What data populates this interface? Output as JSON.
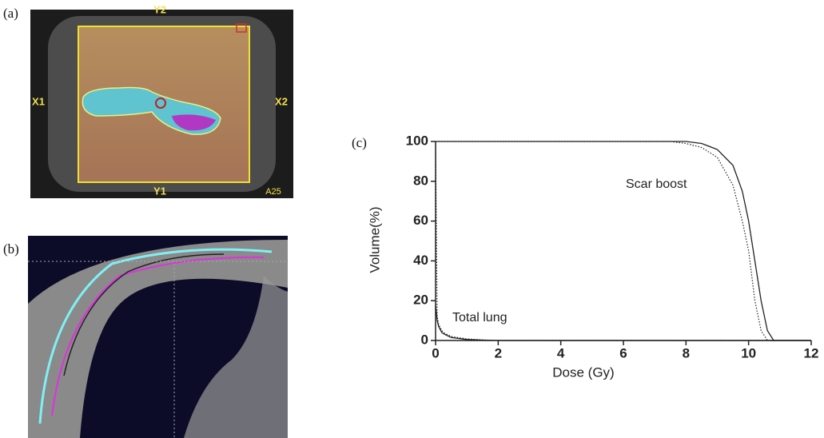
{
  "panels": {
    "a": "(a)",
    "b": "(b)",
    "c": "(c)"
  },
  "image_a": {
    "top": "Y2",
    "left": "X1",
    "right": "X2",
    "bottom": "Y1",
    "corner": "A25"
  },
  "chart_data": {
    "type": "line",
    "xlabel": "Dose (Gy)",
    "ylabel": "Volume(%)",
    "annotations": [
      "Scar boost",
      "Total lung"
    ],
    "x": [
      0,
      0.05,
      0.1,
      0.2,
      0.3,
      0.5,
      1,
      1.5,
      2,
      4,
      6,
      7,
      7.5,
      8,
      8.5,
      9,
      9.5,
      9.8,
      10,
      10.2,
      10.4,
      10.6,
      10.8,
      11,
      12
    ],
    "series": [
      {
        "color": "#222",
        "dash": "solid",
        "values": [
          100,
          100,
          100,
          100,
          100,
          100,
          100,
          100,
          100,
          100,
          100,
          100,
          100,
          100,
          99,
          96,
          88,
          75,
          60,
          40,
          20,
          5,
          0,
          0,
          0
        ]
      },
      {
        "color": "#222",
        "dash": "dotted",
        "values": [
          100,
          100,
          100,
          100,
          100,
          100,
          100,
          100,
          100,
          100,
          100,
          100,
          100,
          99,
          97,
          92,
          78,
          60,
          45,
          20,
          5,
          0,
          0,
          0,
          0
        ]
      },
      {
        "color": "#222",
        "dash": "solid",
        "values": [
          18,
          10,
          7,
          4,
          3,
          1.5,
          0.5,
          0.2,
          0,
          0,
          0,
          0,
          0,
          0,
          0,
          0,
          0,
          0,
          0,
          0,
          0,
          0,
          0,
          0,
          0
        ]
      },
      {
        "color": "#222",
        "dash": "dotted",
        "values": [
          100,
          12,
          8,
          5,
          3.5,
          2,
          0.8,
          0.3,
          0,
          0,
          0,
          0,
          0,
          0,
          0,
          0,
          0,
          0,
          0,
          0,
          0,
          0,
          0,
          0,
          0
        ]
      }
    ],
    "xlim": [
      0,
      12
    ],
    "ylim": [
      0,
      100
    ],
    "xticks": [
      0,
      2,
      4,
      6,
      8,
      10,
      12
    ],
    "yticks": [
      0,
      20,
      40,
      60,
      80,
      100
    ]
  }
}
